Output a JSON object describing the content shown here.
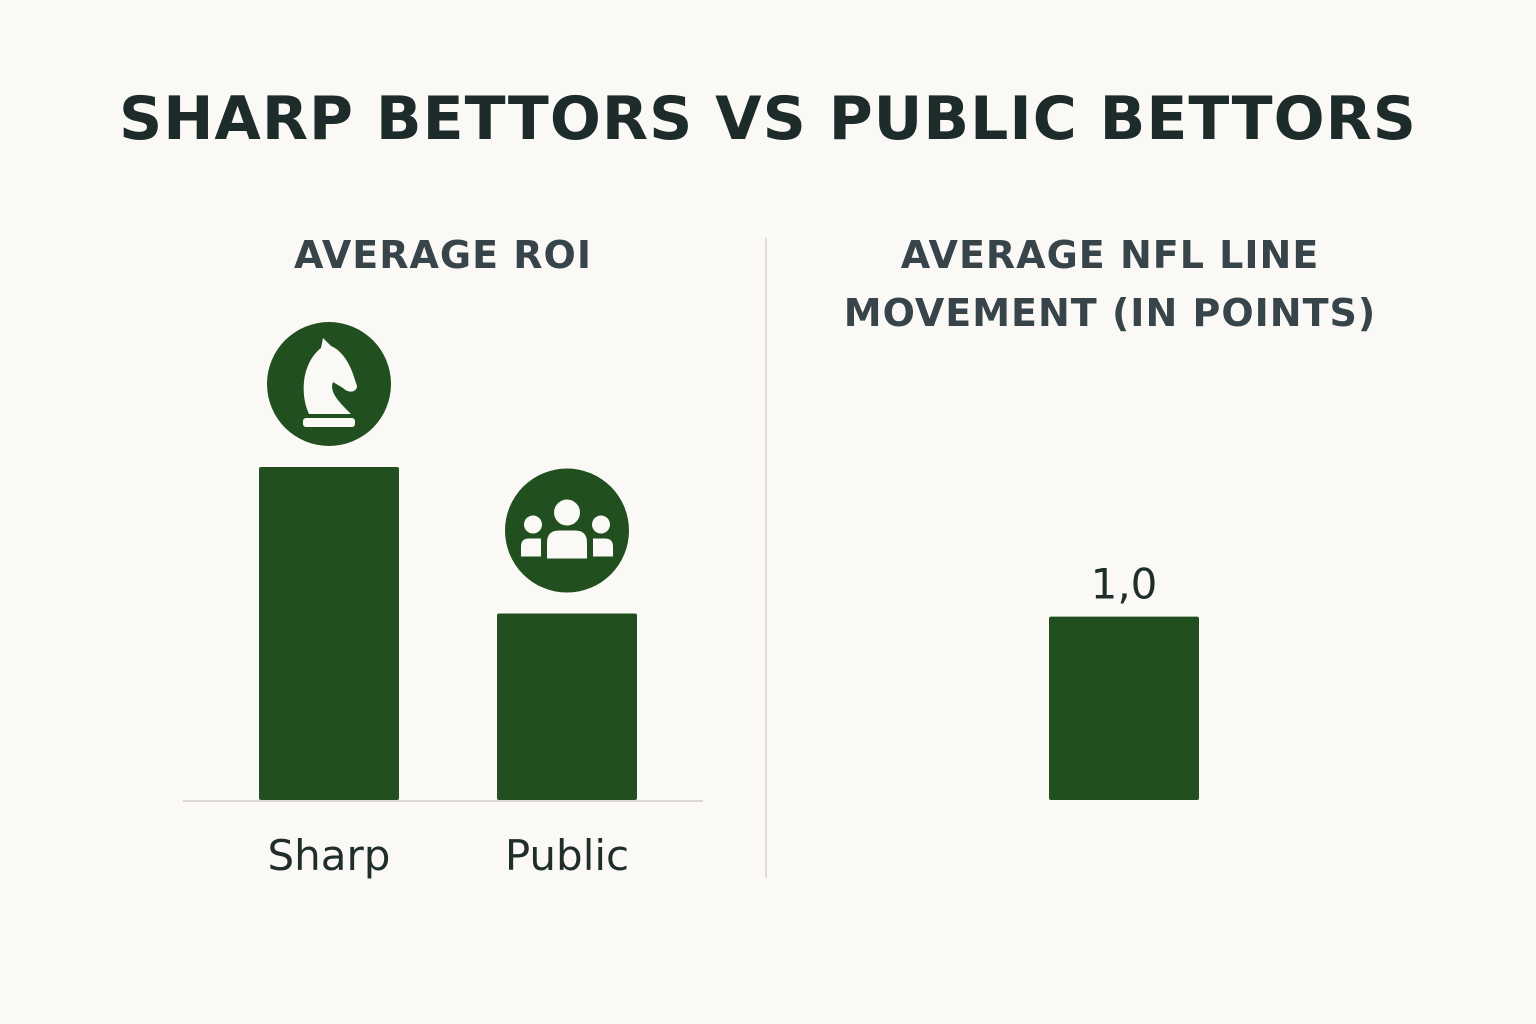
{
  "title": "SHARP BETTORS VS PUBLIC BETTORS",
  "colors": {
    "bar": "#214f20",
    "icon_background": "#214f20",
    "background": "#fbf9f5",
    "text": "#1f2d2b"
  },
  "chart_data": [
    {
      "type": "bar",
      "title": "AVERAGE ROI",
      "categories": [
        "Sharp",
        "Public"
      ],
      "values": [
        100,
        56
      ],
      "value_labels_shown": false,
      "icons": [
        "chess-knight-icon",
        "group-icon"
      ],
      "ylim": [
        0,
        100
      ],
      "grid": false,
      "xlabel": "",
      "ylabel": ""
    },
    {
      "type": "bar",
      "title": "AVERAGE NFL LINE MOVEMENT (IN POINTS)",
      "categories": [
        ""
      ],
      "values": [
        1.0
      ],
      "value_labels": [
        "1,0"
      ],
      "ylim": [
        0,
        1.8
      ],
      "grid": false,
      "xlabel": "",
      "ylabel": ""
    }
  ]
}
